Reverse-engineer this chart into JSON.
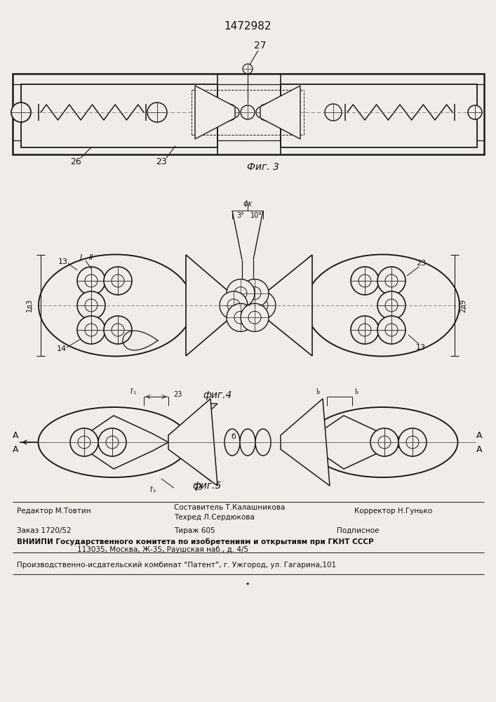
{
  "patent_number": "1472982",
  "fig3_label": "Фиг. 3",
  "fig4_label": "фиг.4",
  "fig5_label": "фиг.5",
  "bg_color": "#f0ede8",
  "line_color": "#1a1a1a",
  "text_color": "#111111",
  "footer_line1_col1": "Редактор М.Товтин",
  "footer_line1_col2": "Составитель Т.Калашникова",
  "footer_line1_col3": "Корректор Н.Гунько",
  "footer_line2_col1": "Техред Л.Сердюкова",
  "footer_order": "Заказ 1720/52",
  "footer_tiraz": "Тираж 605",
  "footer_podp": "Подписное",
  "footer_vniiipi": "ВНИИПИ Государственного комитета по изобретениям и открытиям при ГКНТ СССР",
  "footer_addr": "113035, Москва, Ж-35, Раушская наб., д. 4/5",
  "footer_patent": "Производственно-исдательский комбинат “Патент”, г. Ужгород, ул. Гагарина,101"
}
